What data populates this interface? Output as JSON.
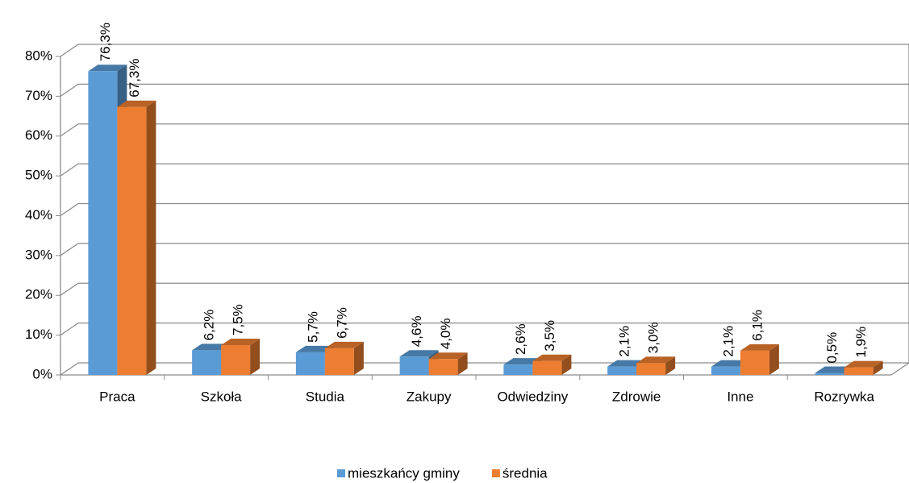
{
  "chart_data": {
    "type": "bar3d",
    "categories": [
      "Praca",
      "Szkoła",
      "Studia",
      "Zakupy",
      "Odwiedziny",
      "Zdrowie",
      "Inne",
      "Rozrywka"
    ],
    "series": [
      {
        "name": "mieszkańcy gminy",
        "color": "#5b9bd5",
        "values": [
          76.3,
          6.2,
          5.7,
          4.6,
          2.6,
          2.1,
          2.1,
          0.5
        ],
        "value_labels": [
          "76,3%",
          "6,2%",
          "5,7%",
          "4,6%",
          "2,6%",
          "2,1%",
          "2,1%",
          "0,5%"
        ]
      },
      {
        "name": "średnia",
        "color": "#ed7d31",
        "values": [
          67.3,
          7.5,
          6.7,
          4.0,
          3.5,
          3.0,
          6.1,
          1.9
        ],
        "value_labels": [
          "67,3%",
          "7,5%",
          "6,7%",
          "4,0%",
          "3,5%",
          "3,0%",
          "6,1%",
          "1,9%"
        ]
      }
    ],
    "ylim": [
      0,
      80
    ],
    "yticks": [
      {
        "value": 0,
        "label": "0%"
      },
      {
        "value": 10,
        "label": "10%"
      },
      {
        "value": 20,
        "label": "20%"
      },
      {
        "value": 30,
        "label": "30%"
      },
      {
        "value": 40,
        "label": "40%"
      },
      {
        "value": 50,
        "label": "50%"
      },
      {
        "value": 60,
        "label": "60%"
      },
      {
        "value": 70,
        "label": "70%"
      },
      {
        "value": 80,
        "label": "80%"
      }
    ],
    "grid": true,
    "legend": "bottom"
  }
}
